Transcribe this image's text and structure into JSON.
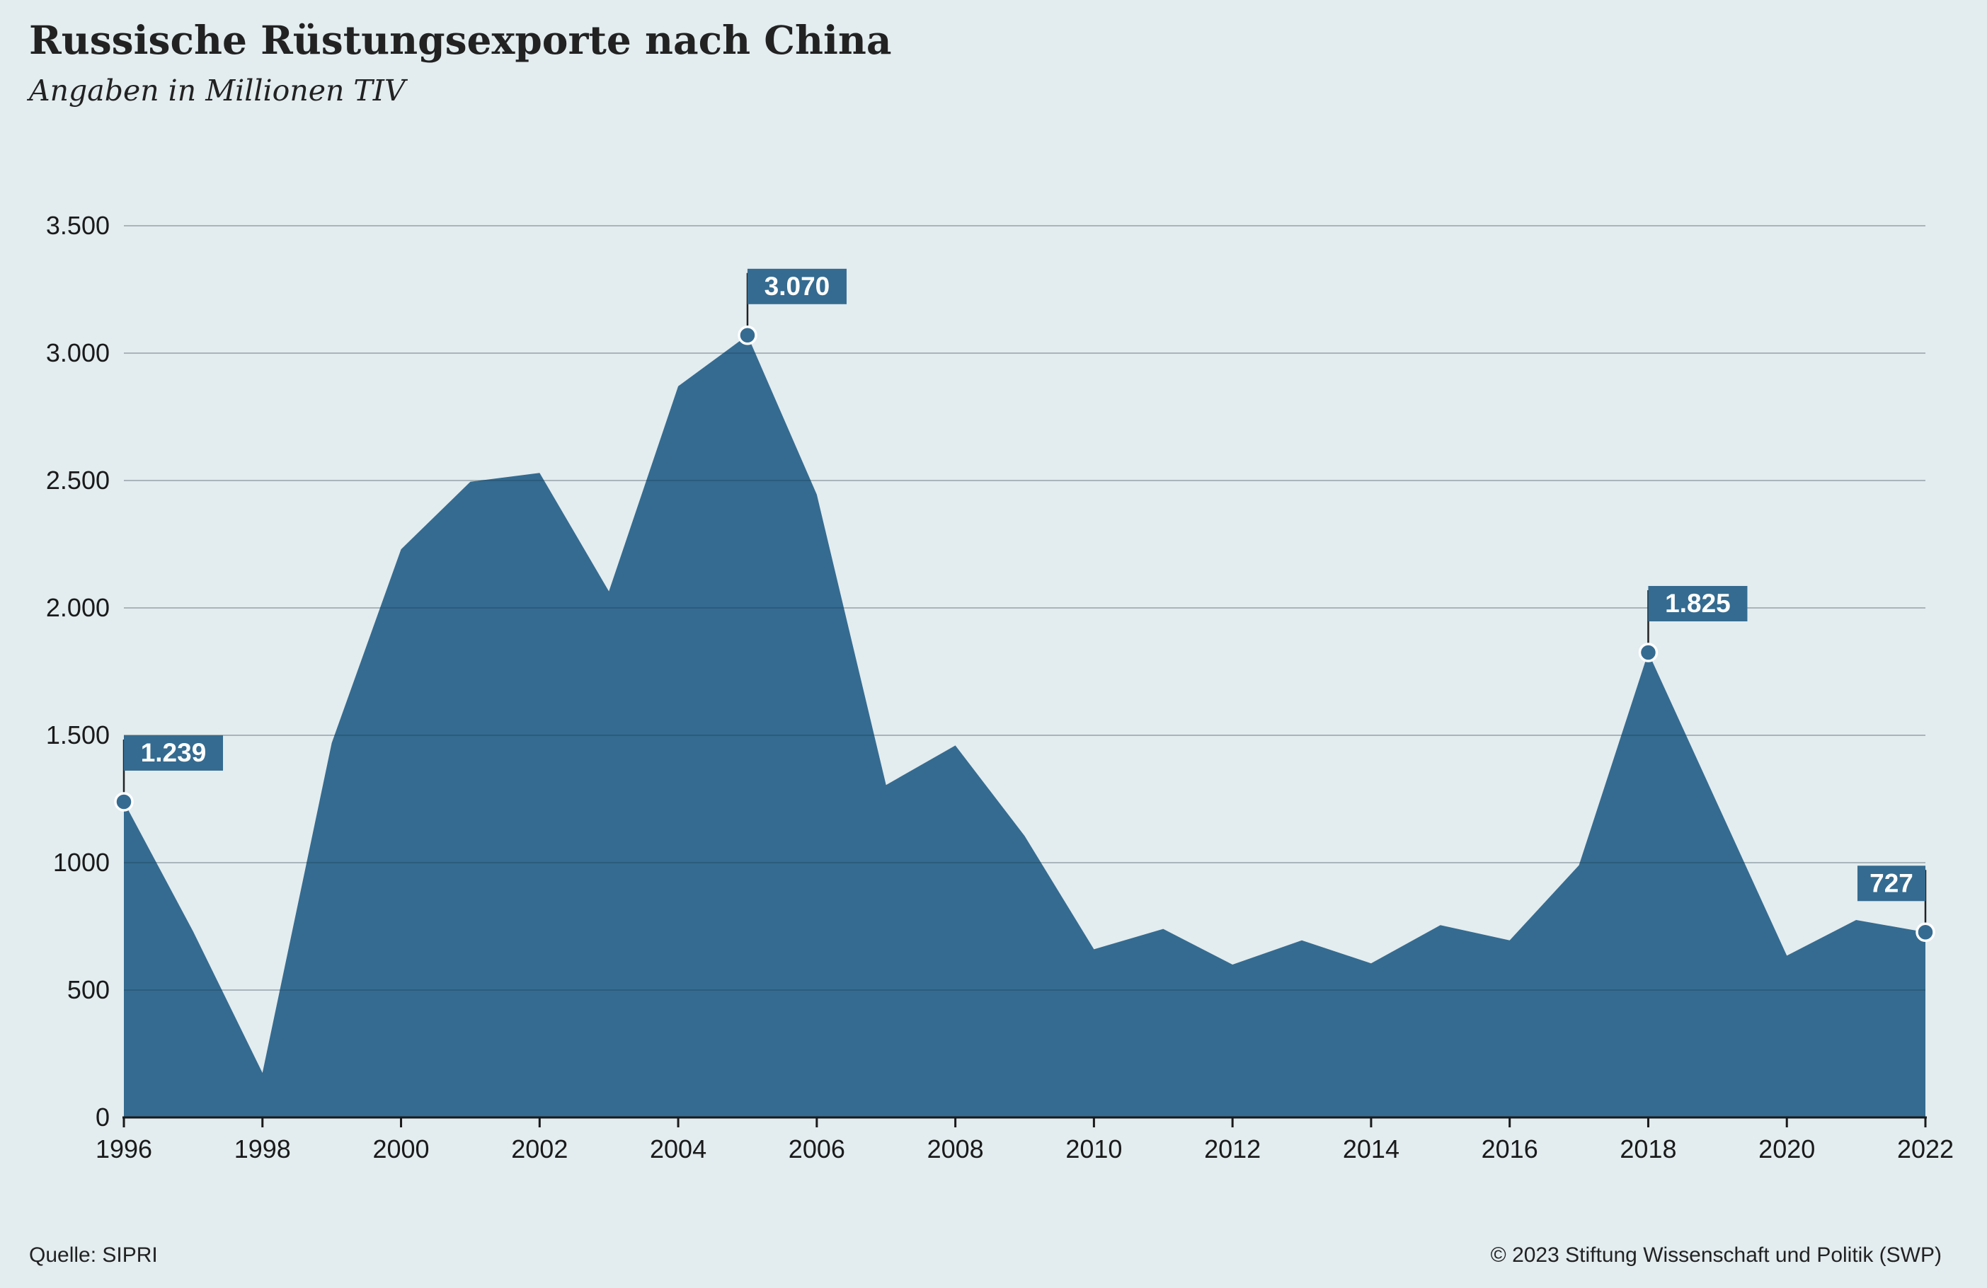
{
  "header": {
    "title": "Russische Rüstungsexporte nach China",
    "subtitle": "Angaben in Millionen TIV"
  },
  "footer": {
    "source": "Quelle: SIPRI",
    "copyright": "© 2023 Stiftung Wissenschaft und Politik (SWP)"
  },
  "colors": {
    "background": "#e3ecef",
    "area": "#356b90",
    "gridline": "#a9b5ba",
    "label_box": "#356b90",
    "label_text": "#ffffff",
    "axis": "#1a1a1a"
  },
  "chart_data": {
    "type": "area",
    "title": "Russische Rüstungsexporte nach China",
    "subtitle": "Angaben in Millionen TIV",
    "xlabel": "",
    "ylabel": "",
    "x": [
      1996,
      1997,
      1998,
      1999,
      2000,
      2001,
      2002,
      2003,
      2004,
      2005,
      2006,
      2007,
      2008,
      2009,
      2010,
      2011,
      2012,
      2013,
      2014,
      2015,
      2016,
      2017,
      2018,
      2019,
      2020,
      2021,
      2022
    ],
    "series": [
      {
        "values": [
          1239,
          730,
          175,
          1470,
          2230,
          2495,
          2530,
          2065,
          2870,
          3070,
          2445,
          1305,
          1460,
          1105,
          660,
          740,
          600,
          695,
          605,
          755,
          695,
          990,
          1825,
          1230,
          635,
          775,
          727
        ]
      }
    ],
    "xlim": [
      1996,
      2022
    ],
    "ylim": [
      0,
      3500
    ],
    "x_ticks": [
      1996,
      1998,
      2000,
      2002,
      2004,
      2006,
      2008,
      2010,
      2012,
      2014,
      2016,
      2018,
      2020,
      2022
    ],
    "y_ticks": [
      0,
      500,
      1000,
      1500,
      2000,
      2500,
      3000,
      3500
    ],
    "x_tick_labels": [
      "1996",
      "1998",
      "2000",
      "2002",
      "2004",
      "2006",
      "2008",
      "2010",
      "2012",
      "2014",
      "2016",
      "2018",
      "2020",
      "2022"
    ],
    "y_tick_labels": [
      "0",
      "500",
      "1000",
      "1.500",
      "2.000",
      "2.500",
      "3.000",
      "3.500"
    ],
    "grid": true,
    "annotations": [
      {
        "x": 1996,
        "y": 1239,
        "text": "1.239",
        "align": "right"
      },
      {
        "x": 2005,
        "y": 3070,
        "text": "3.070",
        "align": "right"
      },
      {
        "x": 2018,
        "y": 1825,
        "text": "1.825",
        "align": "right"
      },
      {
        "x": 2022,
        "y": 727,
        "text": "727",
        "align": "left"
      }
    ]
  }
}
